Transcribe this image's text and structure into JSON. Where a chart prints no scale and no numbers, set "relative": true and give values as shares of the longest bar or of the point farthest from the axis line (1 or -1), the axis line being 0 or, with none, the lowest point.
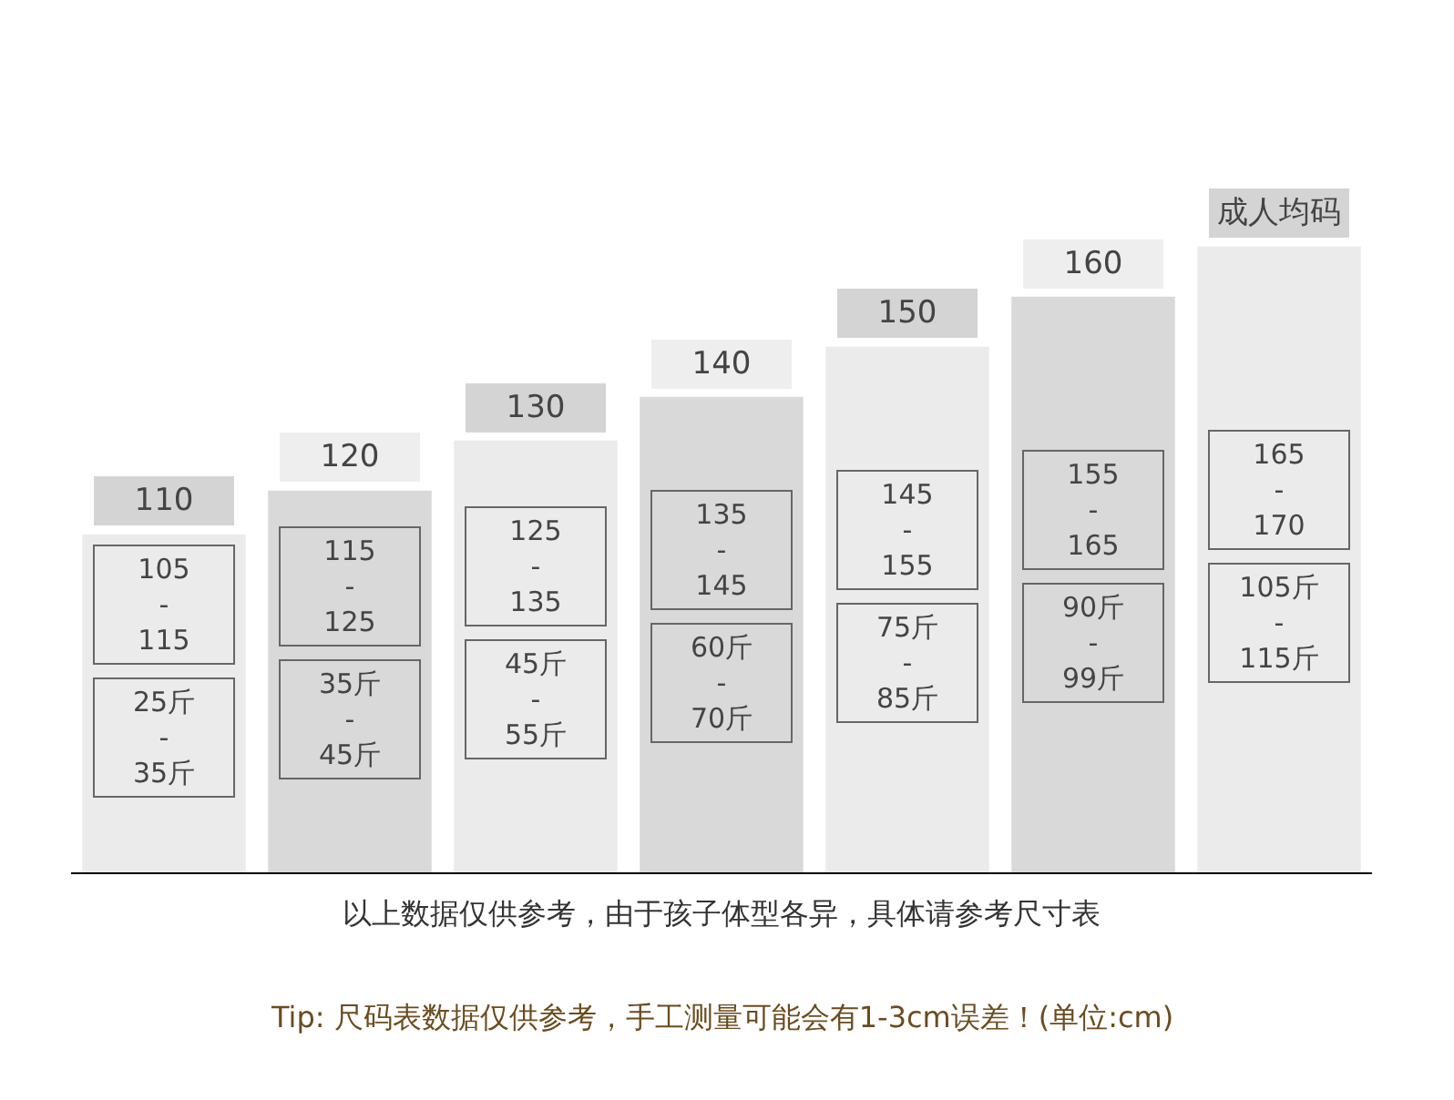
{
  "chart_data": {
    "type": "bar",
    "relative": true,
    "categories": [
      "110",
      "120",
      "130",
      "140",
      "150",
      "160",
      "成人均码"
    ],
    "values": [
      0.54,
      0.61,
      0.69,
      0.76,
      0.84,
      0.92,
      1
    ],
    "colors": [
      "#ebebeb",
      "#d9d9d9",
      "#ebebeb",
      "#d9d9d9",
      "#ebebeb",
      "#d9d9d9",
      "#ebebeb"
    ],
    "annotations": [
      "105\n-\n115",
      "25斤\n-\n35斤",
      "115\n-\n125",
      "35斤\n-\n45斤",
      "125\n-\n135",
      "45斤\n-\n55斤",
      "135\n-\n145",
      "60斤\n-\n70斤",
      "145\n-\n155",
      "75斤\n-\n85斤",
      "155\n-\n165",
      "90斤\n-\n99斤",
      "165\n-\n170",
      "105斤\n-\n115斤",
      "以上数据仅供参考，由于孩子体型各异，具体请参考尺寸表",
      "Tip: 尺码表数据仅供参考，手工测量可能会有1-3cm误差！(单位:cm)"
    ]
  }
}
